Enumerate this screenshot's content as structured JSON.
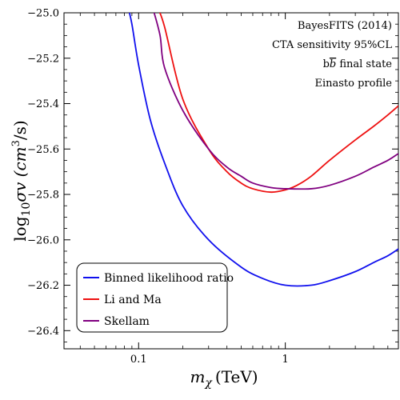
{
  "chart_data": {
    "type": "line",
    "x_scale": "log",
    "xlabel_symbol": "m",
    "xlabel_subscript": "χ",
    "xlabel_unit": "(TeV)",
    "ylabel_text": "log",
    "ylabel_subscript": "10",
    "ylabel_expr": "σv (cm",
    "ylabel_sup": "3",
    "ylabel_tail": "/s)",
    "xlim": [
      0.031,
      5.9
    ],
    "ylim": [
      -26.48,
      -25.0
    ],
    "x_major_ticks": [
      {
        "value": 0.1,
        "label": "0.1"
      },
      {
        "value": 1,
        "label": "1"
      }
    ],
    "x_minor_ticks": [
      0.04,
      0.05,
      0.06,
      0.07,
      0.08,
      0.09,
      0.2,
      0.3,
      0.4,
      0.5,
      0.6,
      0.7,
      0.8,
      0.9,
      2,
      3,
      4,
      5
    ],
    "y_major_ticks": [
      {
        "value": -25.0,
        "label": "−25.0"
      },
      {
        "value": -25.2,
        "label": "−25.2"
      },
      {
        "value": -25.4,
        "label": "−25.4"
      },
      {
        "value": -25.6,
        "label": "−25.6"
      },
      {
        "value": -25.8,
        "label": "−25.8"
      },
      {
        "value": -26.0,
        "label": "−26.0"
      },
      {
        "value": -26.2,
        "label": "−26.2"
      },
      {
        "value": -26.4,
        "label": "−26.4"
      }
    ],
    "y_minor_step": 0.05,
    "annotations": [
      {
        "text": "BayesFITS (2014)"
      },
      {
        "text": "CTA sensitivity 95%CL"
      },
      {
        "prefix": "b",
        "bar": "b",
        "text": " final state"
      },
      {
        "text": "Einasto profile"
      }
    ],
    "legend_position": "bottom-left",
    "series": [
      {
        "name": "Binned likelihood ratio",
        "color": "#1010ee",
        "points": [
          [
            0.085,
            -24.98
          ],
          [
            0.09,
            -25.05
          ],
          [
            0.1,
            -25.23
          ],
          [
            0.12,
            -25.47
          ],
          [
            0.15,
            -25.66
          ],
          [
            0.2,
            -25.85
          ],
          [
            0.3,
            -26.0
          ],
          [
            0.5,
            -26.12
          ],
          [
            0.7,
            -26.17
          ],
          [
            1.0,
            -26.2
          ],
          [
            1.5,
            -26.2
          ],
          [
            2.0,
            -26.18
          ],
          [
            3.0,
            -26.14
          ],
          [
            4.0,
            -26.1
          ],
          [
            5.0,
            -26.07
          ],
          [
            5.9,
            -26.04
          ]
        ]
      },
      {
        "name": "Li and Ma",
        "color": "#ee1010",
        "points": [
          [
            0.135,
            -24.98
          ],
          [
            0.15,
            -25.06
          ],
          [
            0.2,
            -25.38
          ],
          [
            0.3,
            -25.6
          ],
          [
            0.4,
            -25.7
          ],
          [
            0.5,
            -25.75
          ],
          [
            0.6,
            -25.775
          ],
          [
            0.8,
            -25.79
          ],
          [
            1.0,
            -25.78
          ],
          [
            1.2,
            -25.76
          ],
          [
            1.5,
            -25.72
          ],
          [
            2.0,
            -25.65
          ],
          [
            3.0,
            -25.56
          ],
          [
            4.0,
            -25.5
          ],
          [
            5.0,
            -25.45
          ],
          [
            5.9,
            -25.41
          ]
        ]
      },
      {
        "name": "Skellam",
        "color": "#800080",
        "points": [
          [
            0.125,
            -24.98
          ],
          [
            0.14,
            -25.1
          ],
          [
            0.15,
            -25.24
          ],
          [
            0.2,
            -25.43
          ],
          [
            0.3,
            -25.6
          ],
          [
            0.4,
            -25.68
          ],
          [
            0.5,
            -25.72
          ],
          [
            0.6,
            -25.75
          ],
          [
            0.8,
            -25.77
          ],
          [
            1.0,
            -25.775
          ],
          [
            1.5,
            -25.775
          ],
          [
            2.0,
            -25.76
          ],
          [
            3.0,
            -25.72
          ],
          [
            4.0,
            -25.68
          ],
          [
            5.0,
            -25.65
          ],
          [
            5.9,
            -25.62
          ]
        ]
      }
    ]
  }
}
